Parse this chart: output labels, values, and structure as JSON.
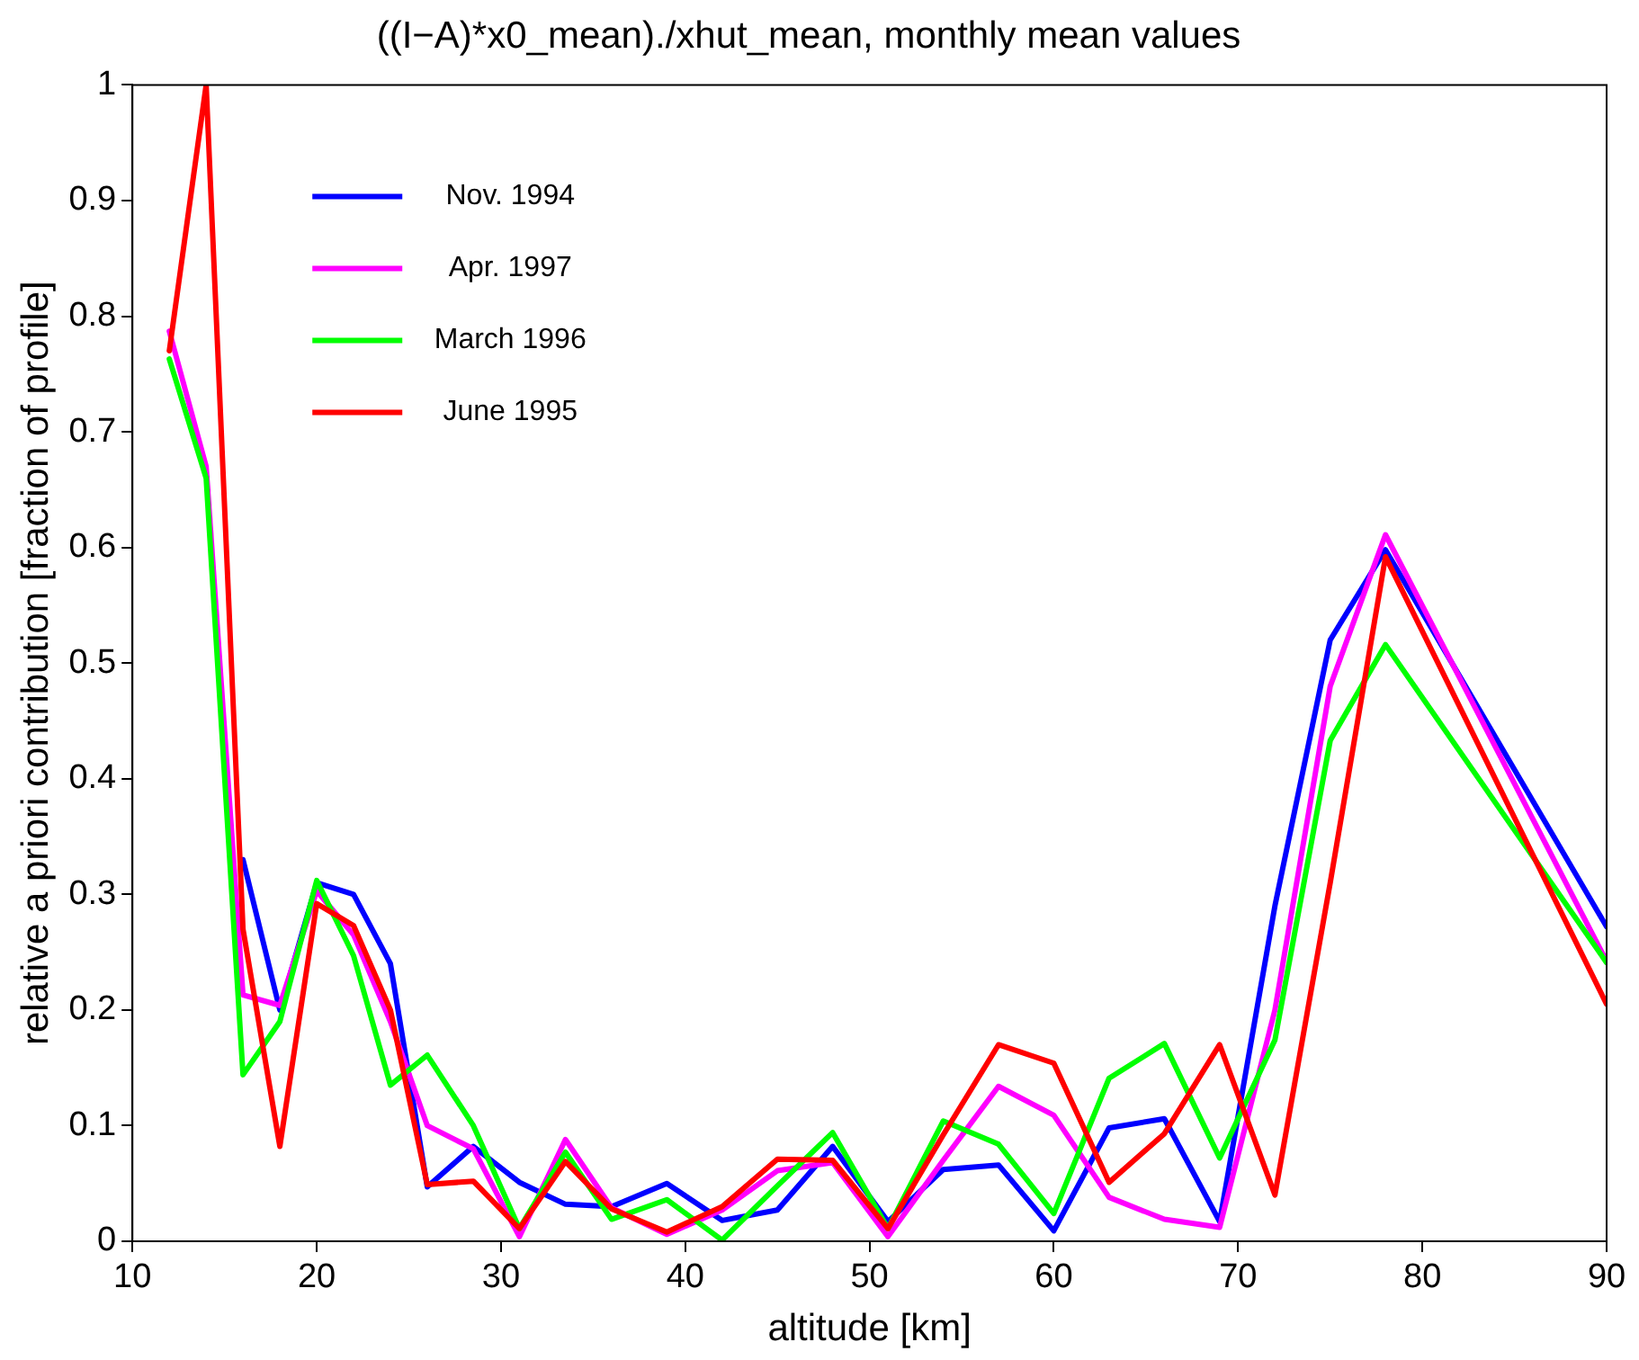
{
  "chart_data": {
    "type": "line",
    "title": "((I−A)*x0_mean)./xhut_mean, monthly mean values",
    "xlabel": "altitude [km]",
    "ylabel": "relative a priori contribution [fraction of profile]",
    "x": [
      12,
      14,
      16,
      18,
      20,
      22,
      24,
      26,
      28.5,
      31,
      33.5,
      36,
      39,
      42,
      45,
      48,
      51,
      54,
      57,
      60,
      63,
      66,
      69,
      72,
      75,
      78,
      90
    ],
    "xlim": [
      10,
      90
    ],
    "xticks": [
      10,
      20,
      30,
      40,
      50,
      60,
      70,
      80,
      90
    ],
    "ylim": [
      0,
      1
    ],
    "yticks": [
      0,
      0.1,
      0.2,
      0.3,
      0.4,
      0.5,
      0.6,
      0.7,
      0.8,
      0.9,
      1
    ],
    "grid": false,
    "legend": "top left",
    "marker": "none",
    "line_style": "solid",
    "series": [
      {
        "name": "Nov. 1994",
        "color": "#0000ff",
        "values": [
          null,
          null,
          0.33,
          0.2,
          0.31,
          0.3,
          0.24,
          0.047,
          0.082,
          0.051,
          0.032,
          0.03,
          0.05,
          0.018,
          0.027,
          0.082,
          0.017,
          0.062,
          0.066,
          0.009,
          0.098,
          0.106,
          0.017,
          0.29,
          0.52,
          0.598,
          0.272
        ]
      },
      {
        "name": "Apr. 1997",
        "color": "#ff00ff",
        "values": [
          0.787,
          0.67,
          0.213,
          0.204,
          0.303,
          0.265,
          0.19,
          0.1,
          0.08,
          0.004,
          0.088,
          0.029,
          0.006,
          0.027,
          0.061,
          0.068,
          0.004,
          0.07,
          0.134,
          0.109,
          0.038,
          0.019,
          0.012,
          0.2,
          0.48,
          0.611,
          0.242
        ]
      },
      {
        "name": "March 1996",
        "color": "#00ff00",
        "values": [
          0.763,
          0.66,
          0.144,
          0.19,
          0.312,
          0.247,
          0.135,
          0.161,
          0.1,
          0.011,
          0.077,
          0.019,
          0.036,
          0.001,
          0.048,
          0.094,
          0.011,
          0.104,
          0.084,
          0.024,
          0.141,
          0.171,
          0.072,
          0.174,
          0.433,
          0.516,
          0.241
        ]
      },
      {
        "name": "June 1995",
        "color": "#ff0000",
        "values": [
          0.77,
          1,
          0.27,
          0.082,
          0.292,
          0.273,
          0.2,
          0.049,
          0.052,
          0.011,
          0.069,
          0.028,
          0.008,
          0.03,
          0.071,
          0.07,
          0.011,
          0.092,
          0.17,
          0.154,
          0.051,
          0.093,
          0.17,
          0.04,
          0.31,
          0.592,
          0.205
        ]
      }
    ]
  }
}
